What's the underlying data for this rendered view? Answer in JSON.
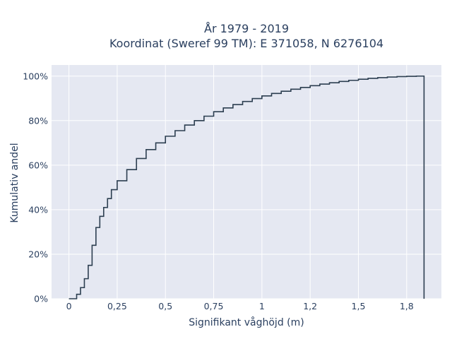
{
  "chart_data": {
    "type": "line",
    "subtype": "cumulative-step",
    "title_line1": "År 1979 - 2019",
    "title_line2": "Koordinat (Sweref 99 TM): E 371058, N 6276104",
    "xlabel": "Signifikant våghöjd (m)",
    "ylabel": "Kumulativ andel",
    "xlim": [
      -0.09,
      1.93
    ],
    "ylim": [
      0,
      1.05
    ],
    "x_ticks": [
      {
        "value": 0,
        "label": "0"
      },
      {
        "value": 0.25,
        "label": "0,25"
      },
      {
        "value": 0.5,
        "label": "0,5"
      },
      {
        "value": 0.75,
        "label": "0,75"
      },
      {
        "value": 1.0,
        "label": "1"
      },
      {
        "value": 1.25,
        "label": "1,2"
      },
      {
        "value": 1.5,
        "label": "1,5"
      },
      {
        "value": 1.75,
        "label": "1,8"
      }
    ],
    "y_ticks": [
      {
        "value": 0,
        "label": "0%"
      },
      {
        "value": 0.2,
        "label": "20%"
      },
      {
        "value": 0.4,
        "label": "40%"
      },
      {
        "value": 0.6,
        "label": "60%"
      },
      {
        "value": 0.8,
        "label": "80%"
      },
      {
        "value": 1.0,
        "label": "100%"
      }
    ],
    "grid": true,
    "line_color": "#2c3e50",
    "plot_bg": "#e5e8f2",
    "grid_color": "#ffffff",
    "series": [
      {
        "points": [
          [
            0.0,
            0.0
          ],
          [
            0.02,
            0.0
          ],
          [
            0.04,
            0.02
          ],
          [
            0.06,
            0.05
          ],
          [
            0.08,
            0.09
          ],
          [
            0.1,
            0.15
          ],
          [
            0.12,
            0.24
          ],
          [
            0.14,
            0.32
          ],
          [
            0.16,
            0.37
          ],
          [
            0.18,
            0.41
          ],
          [
            0.2,
            0.45
          ],
          [
            0.22,
            0.49
          ],
          [
            0.25,
            0.53
          ],
          [
            0.3,
            0.58
          ],
          [
            0.35,
            0.63
          ],
          [
            0.4,
            0.67
          ],
          [
            0.45,
            0.7
          ],
          [
            0.5,
            0.73
          ],
          [
            0.55,
            0.755
          ],
          [
            0.6,
            0.78
          ],
          [
            0.65,
            0.8
          ],
          [
            0.7,
            0.82
          ],
          [
            0.75,
            0.84
          ],
          [
            0.8,
            0.857
          ],
          [
            0.85,
            0.872
          ],
          [
            0.9,
            0.886
          ],
          [
            0.95,
            0.899
          ],
          [
            1.0,
            0.911
          ],
          [
            1.05,
            0.922
          ],
          [
            1.1,
            0.932
          ],
          [
            1.15,
            0.941
          ],
          [
            1.2,
            0.949
          ],
          [
            1.25,
            0.957
          ],
          [
            1.3,
            0.964
          ],
          [
            1.35,
            0.97
          ],
          [
            1.4,
            0.976
          ],
          [
            1.45,
            0.981
          ],
          [
            1.5,
            0.986
          ],
          [
            1.55,
            0.99
          ],
          [
            1.6,
            0.993
          ],
          [
            1.65,
            0.996
          ],
          [
            1.7,
            0.998
          ],
          [
            1.75,
            0.999
          ],
          [
            1.8,
            1.0
          ],
          [
            1.84,
            1.0
          ],
          [
            1.84,
            0.0
          ]
        ]
      }
    ]
  }
}
